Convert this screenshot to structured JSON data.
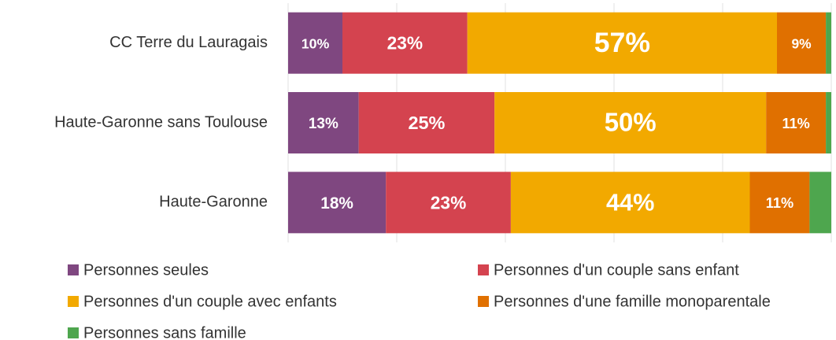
{
  "chart_data": {
    "type": "stacked-barh",
    "categories": [
      "CC Terre du Lauragais",
      "Haute-Garonne sans Toulouse",
      "Haute-Garonne"
    ],
    "series": [
      {
        "name": "Personnes seules",
        "color": "#7f4780",
        "values": [
          10,
          13,
          18
        ],
        "value_labels": [
          "10%",
          "13%",
          "18%"
        ]
      },
      {
        "name": "Personnes d'un couple sans enfant",
        "color": "#d4434f",
        "values": [
          23,
          25,
          23
        ],
        "value_labels": [
          "23%",
          "25%",
          "23%"
        ]
      },
      {
        "name": "Personnes d'un couple avec enfants",
        "color": "#f2a900",
        "values": [
          57,
          50,
          44
        ],
        "value_labels": [
          "57%",
          "50%",
          "44%"
        ]
      },
      {
        "name": "Personnes d'une famille monoparentale",
        "color": "#e07000",
        "values": [
          9,
          11,
          11
        ],
        "value_labels": [
          "9%",
          "11%",
          "11%"
        ]
      },
      {
        "name": "Personnes sans famille",
        "color": "#4ea64e",
        "values": [
          1,
          1,
          4
        ]
      }
    ],
    "xlim": [
      0,
      100
    ],
    "xticks": [
      0,
      20,
      40,
      60,
      80,
      100
    ],
    "grid": true,
    "legend": "bottom"
  }
}
